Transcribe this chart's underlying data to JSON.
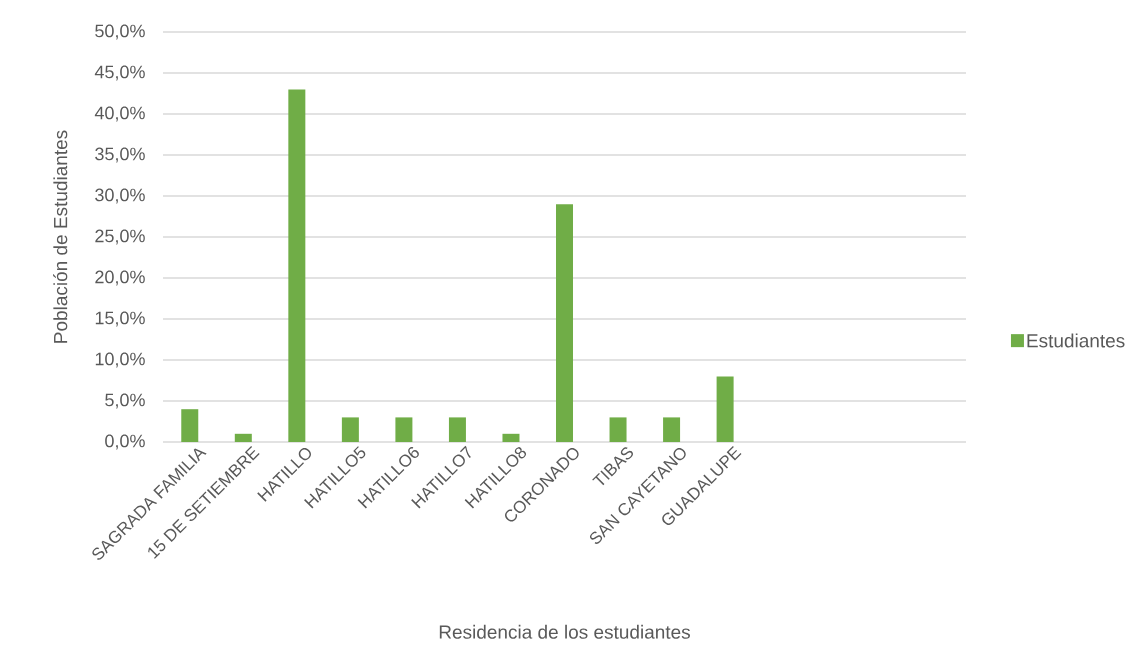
{
  "chart_data": {
    "type": "bar",
    "xlabel": "Residencia de los estudiantes",
    "ylabel": "Población de Estudiantes",
    "categories": [
      "SAGRADA FAMILIA",
      "15 DE SETIEMBRE",
      "HATILLO",
      "HATILLO5",
      "HATILLO6",
      "HATILLO7",
      "HATILLO8",
      "CORONADO",
      "TIBAS",
      "SAN CAYETANO",
      "GUADALUPE",
      null,
      null,
      null,
      null
    ],
    "series": [
      {
        "name": "Estudiantes",
        "color": "#70ad47",
        "values": [
          4,
          1,
          43,
          3,
          3,
          3,
          1,
          29,
          3,
          3,
          8,
          null,
          null,
          null,
          null
        ]
      }
    ],
    "ylim": [
      0,
      50
    ],
    "yticks": [
      {
        "value": 0,
        "label": "0,0%"
      },
      {
        "value": 5,
        "label": "5,0%"
      },
      {
        "value": 10,
        "label": "10,0%"
      },
      {
        "value": 15,
        "label": "15,0%"
      },
      {
        "value": 20,
        "label": "20,0%"
      },
      {
        "value": 25,
        "label": "25,0%"
      },
      {
        "value": 30,
        "label": "30,0%"
      },
      {
        "value": 35,
        "label": "35,0%"
      },
      {
        "value": 40,
        "label": "40,0%"
      },
      {
        "value": 45,
        "label": "45,0%"
      },
      {
        "value": 50,
        "label": "50,0%"
      }
    ],
    "grid": "y",
    "legend": "right"
  }
}
